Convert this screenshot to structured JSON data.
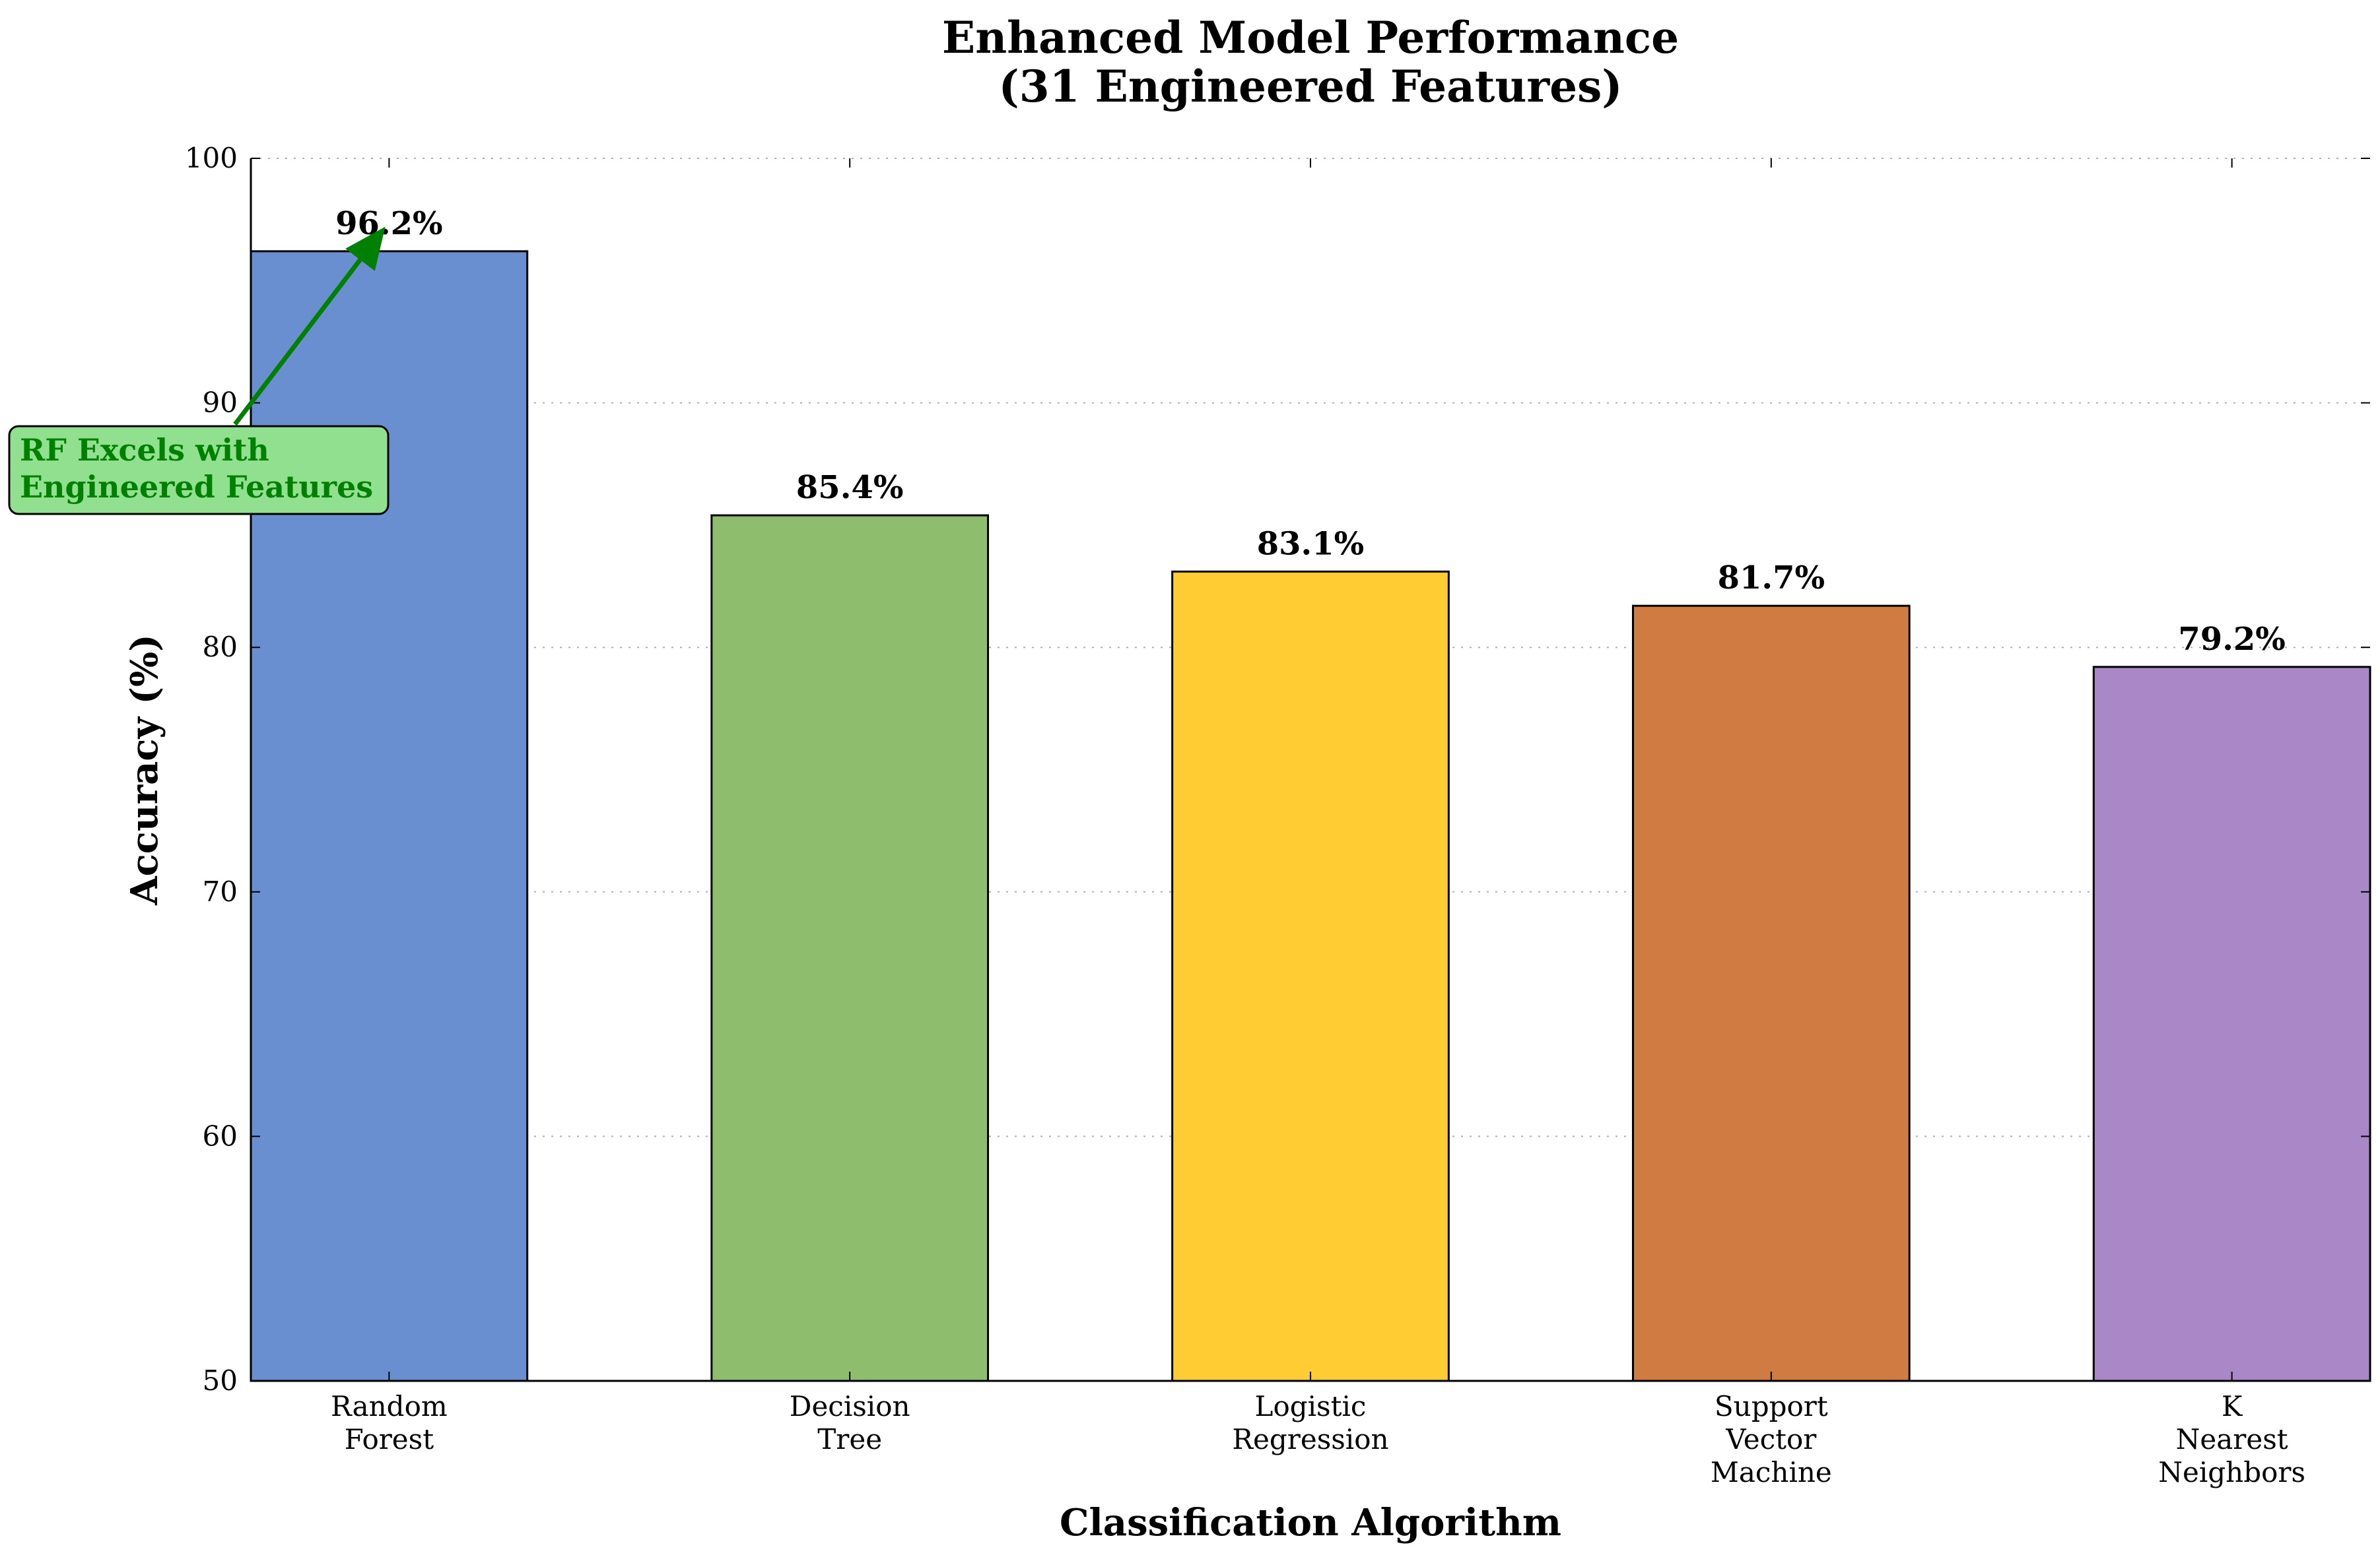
{
  "chart_data": {
    "type": "bar",
    "title": [
      "Enhanced Model Performance",
      "(31 Engineered Features)"
    ],
    "xlabel": "Classification Algorithm",
    "ylabel": "Accuracy (%)",
    "ylim": [
      50,
      100
    ],
    "yticks": [
      50,
      60,
      70,
      80,
      90,
      100
    ],
    "grid": true,
    "categories": [
      [
        "Random",
        "Forest"
      ],
      [
        "Decision",
        "Tree"
      ],
      [
        "Logistic",
        "Regression"
      ],
      [
        "Support",
        "Vector",
        "Machine"
      ],
      [
        "K",
        "Nearest",
        "Neighbors"
      ]
    ],
    "values": [
      96.2,
      85.4,
      83.1,
      81.7,
      79.2
    ],
    "value_labels": [
      "96.2%",
      "85.4%",
      "83.1%",
      "81.7%",
      "79.2%"
    ],
    "colors": [
      "#6a8fd0",
      "#8ebd6e",
      "#ffcc33",
      "#d07b42",
      "#aa88c8"
    ],
    "annotation": {
      "text": [
        "RF Excels with",
        "Engineered Features"
      ],
      "target_category": 0,
      "target_value": 97,
      "text_color": "#008000",
      "box_fill": "#90e090",
      "arrow_color": "#008000"
    }
  }
}
